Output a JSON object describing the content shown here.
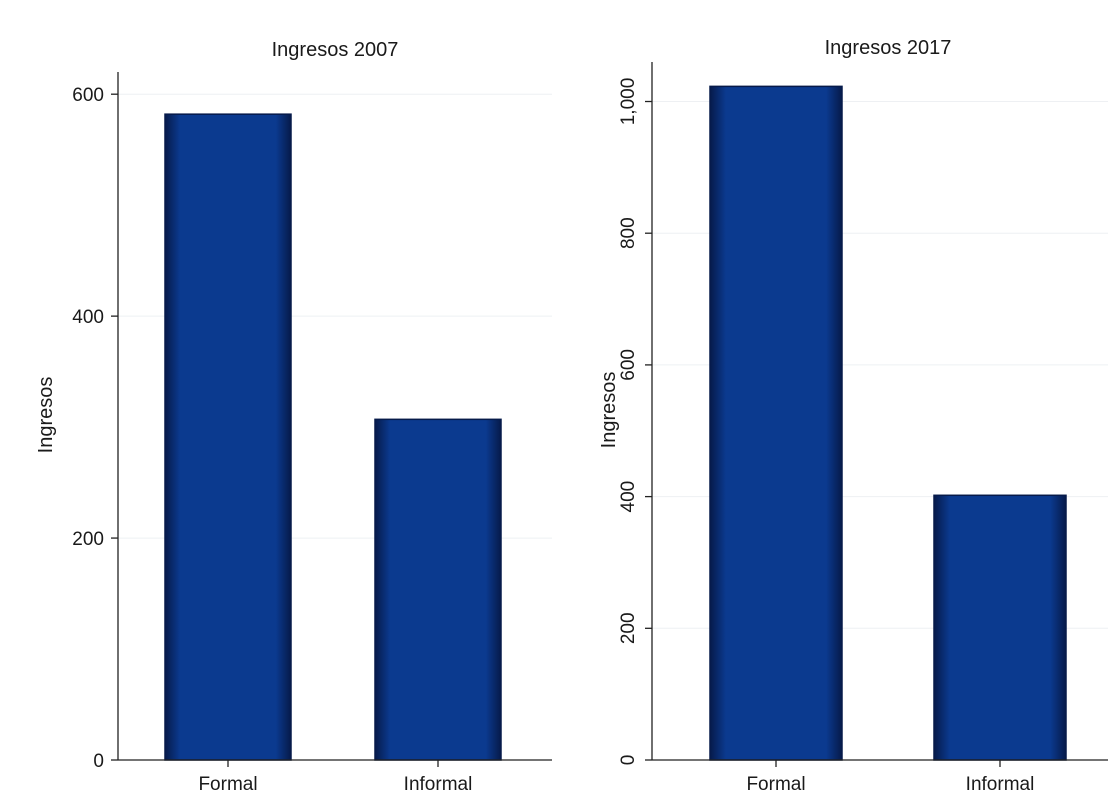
{
  "chart_data": [
    {
      "type": "bar",
      "title": "Ingresos 2007",
      "ylabel": "Ingresos",
      "xlabel": "",
      "categories": [
        "Formal",
        "Informal"
      ],
      "values": [
        582,
        307
      ],
      "ylim": [
        0,
        620
      ],
      "yticks": [
        0,
        200,
        400,
        600
      ],
      "ytick_labels": [
        "0",
        "200",
        "400",
        "600"
      ],
      "ytick_rotation": "horizontal",
      "grid": true,
      "bar_color": "#0b3a8f",
      "bar_edge_color": "#061a4a"
    },
    {
      "type": "bar",
      "title": "Ingresos 2017",
      "ylabel": "Ingresos",
      "xlabel": "",
      "categories": [
        "Formal",
        "Informal"
      ],
      "values": [
        1023,
        402
      ],
      "ylim": [
        0,
        1060
      ],
      "yticks": [
        0,
        200,
        400,
        600,
        800,
        1000
      ],
      "ytick_labels": [
        "0",
        "200",
        "400",
        "600",
        "800",
        "1,000"
      ],
      "ytick_rotation": "vertical",
      "grid": true,
      "bar_color": "#0b3a8f",
      "bar_edge_color": "#061a4a"
    }
  ]
}
